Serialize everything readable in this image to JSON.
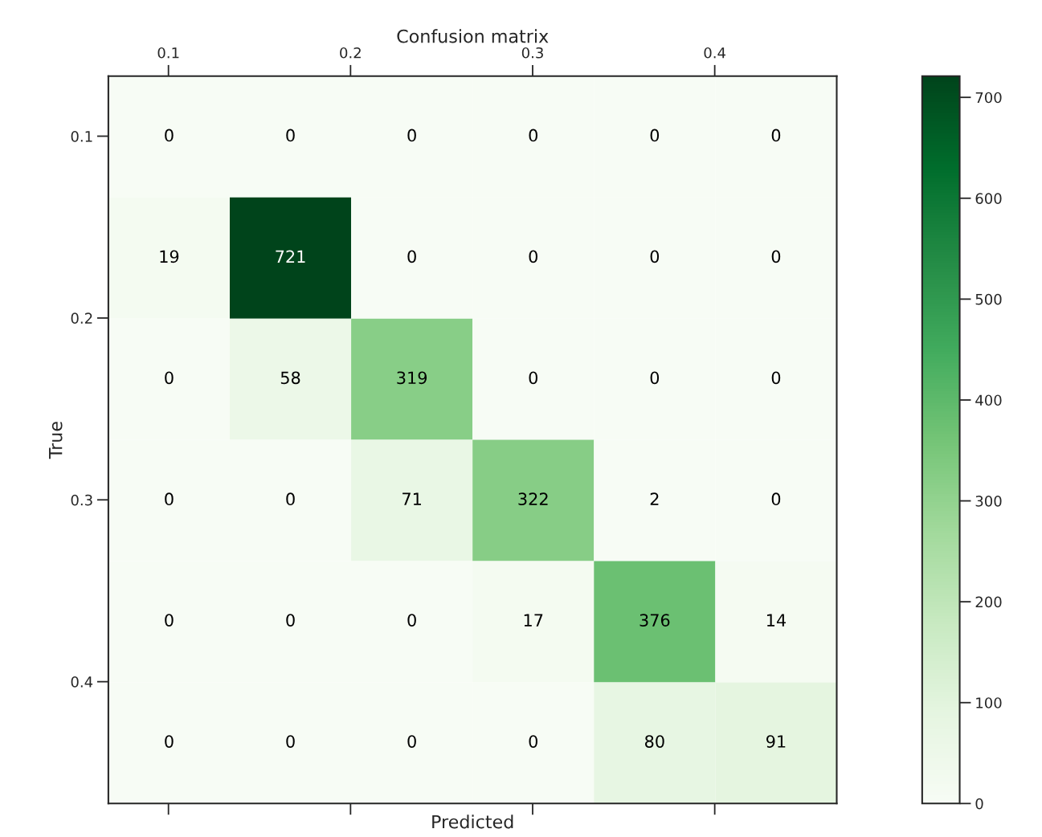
{
  "chart_data": {
    "type": "heatmap",
    "title": "Confusion matrix",
    "xlabel": "Predicted",
    "ylabel": "True",
    "xlim": [
      0.067,
      0.467
    ],
    "xticks": [
      0.1,
      0.2,
      0.3,
      0.4
    ],
    "ylim": [
      0.467,
      0.067
    ],
    "yticks": [
      0.1,
      0.2,
      0.3,
      0.4
    ],
    "cells": [
      [
        0,
        0,
        0,
        0,
        0,
        0
      ],
      [
        19,
        721,
        0,
        0,
        0,
        0
      ],
      [
        0,
        58,
        319,
        0,
        0,
        0
      ],
      [
        0,
        0,
        71,
        322,
        2,
        0
      ],
      [
        0,
        0,
        0,
        17,
        376,
        14
      ],
      [
        0,
        0,
        0,
        0,
        80,
        91
      ]
    ],
    "clim": [
      0,
      721
    ],
    "cticks": [
      0,
      100,
      200,
      300,
      400,
      500,
      600,
      700
    ],
    "data_labels": true,
    "grid": false
  }
}
